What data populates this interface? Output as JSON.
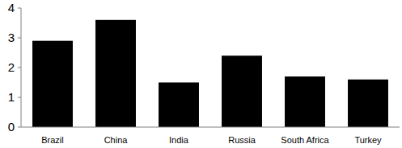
{
  "chart_data": {
    "type": "bar",
    "categories": [
      "Brazil",
      "China",
      "India",
      "Russia",
      "South Africa",
      "Turkey"
    ],
    "values": [
      2.9,
      3.6,
      1.5,
      2.4,
      1.7,
      1.6
    ],
    "color": "#000000",
    "ylim": [
      0,
      4
    ],
    "yticks": [
      0,
      1,
      2,
      3,
      4
    ],
    "grid": false
  }
}
